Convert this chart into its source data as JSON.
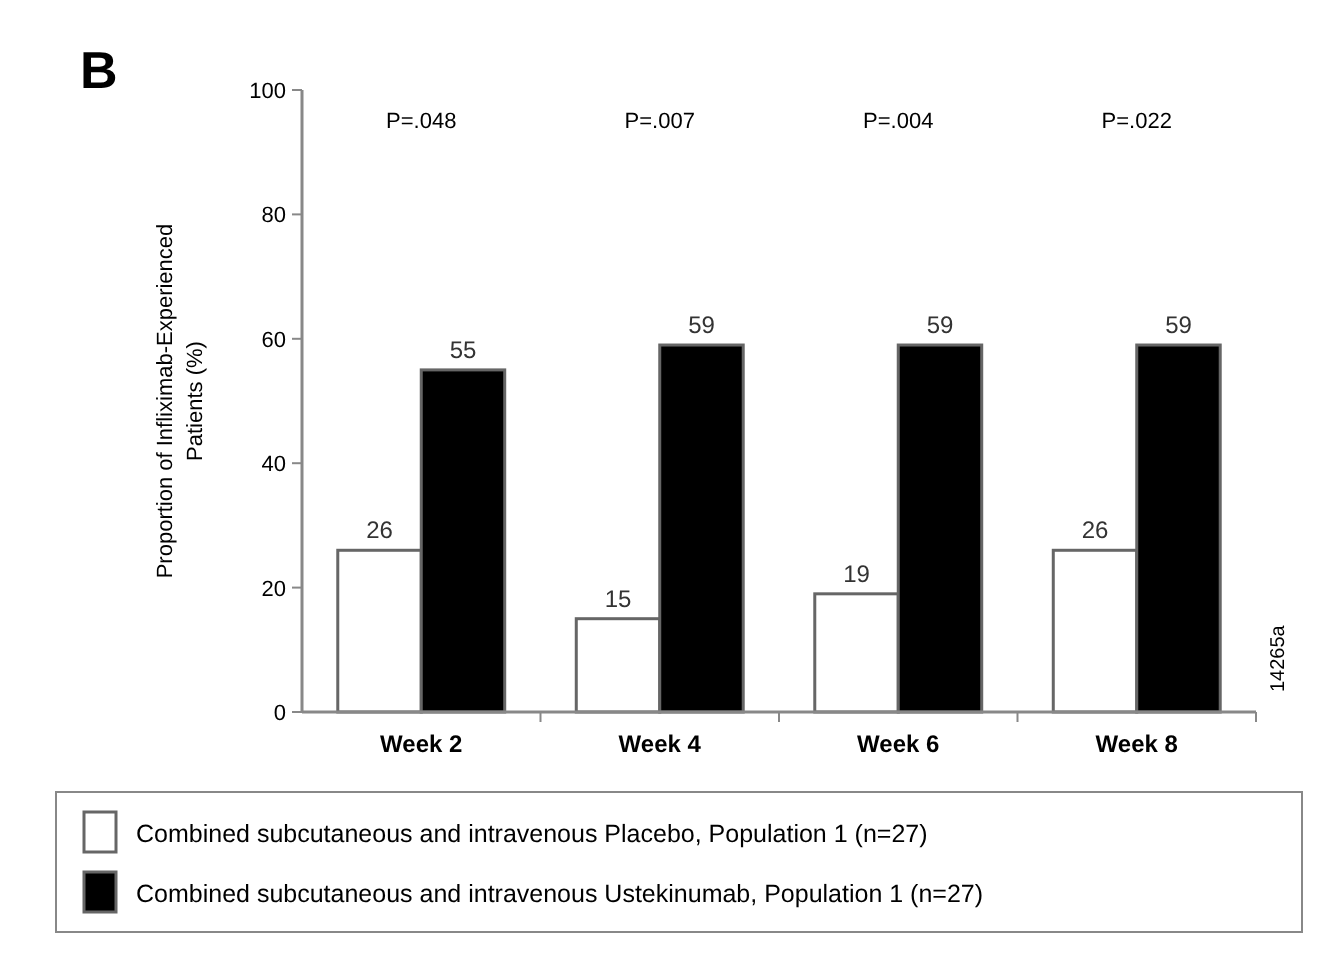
{
  "chart_data": {
    "type": "bar",
    "ylabel": "Proportion of Infliximab-Experienced Patients (%)",
    "categories": [
      "Week 2",
      "Week 4",
      "Week 6",
      "Week 8"
    ],
    "series": [
      {
        "name": "Combined subcutaneous and intravenous Placebo, Population 1 (n=27)",
        "color": "#ffffff",
        "values": [
          26,
          15,
          19,
          26
        ]
      },
      {
        "name": "Combined subcutaneous and intravenous Ustekinumab, Population 1 (n=27)",
        "color": "#000000",
        "values": [
          55,
          59,
          59,
          59
        ]
      }
    ],
    "ylim": [
      0,
      100
    ],
    "yticks": [
      0,
      20,
      40,
      60,
      80,
      100
    ],
    "data_labels": true,
    "legend": "bottom",
    "grid": false,
    "annotations": [
      "B",
      "P=.048",
      "P=.007",
      "P=.004",
      "P=.022",
      "14265a"
    ]
  }
}
